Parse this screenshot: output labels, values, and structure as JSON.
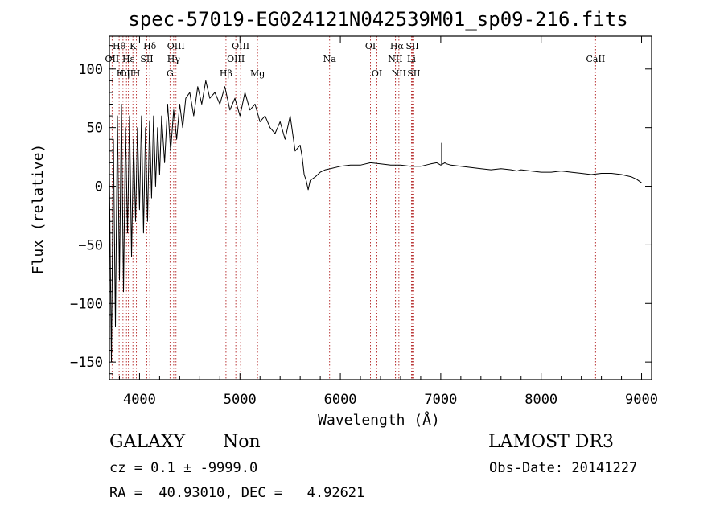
{
  "chart_data": {
    "type": "line",
    "title": "spec-57019-EG024121N042539M01_sp09-216.fits",
    "xlabel": "Wavelength (Å)",
    "ylabel": "Flux (relative)",
    "xlim": [
      3700,
      9100
    ],
    "ylim": [
      -165,
      128
    ],
    "xticks": [
      4000,
      5000,
      6000,
      7000,
      8000,
      9000
    ],
    "yticks": [
      -150,
      -100,
      -50,
      0,
      50,
      100
    ],
    "line_color": "#000000",
    "marker_color": "#b22222",
    "spectrum": {
      "x": [
        3700,
        3720,
        3740,
        3760,
        3780,
        3800,
        3820,
        3840,
        3860,
        3880,
        3900,
        3920,
        3940,
        3960,
        3980,
        4000,
        4020,
        4040,
        4060,
        4080,
        4100,
        4120,
        4140,
        4160,
        4180,
        4200,
        4220,
        4250,
        4280,
        4310,
        4340,
        4370,
        4400,
        4430,
        4460,
        4500,
        4540,
        4580,
        4620,
        4660,
        4700,
        4750,
        4800,
        4850,
        4900,
        4950,
        5000,
        5050,
        5100,
        5150,
        5200,
        5250,
        5300,
        5350,
        5400,
        5450,
        5500,
        5550,
        5600,
        5620,
        5640,
        5660,
        5680,
        5700,
        5750,
        5800,
        5850,
        5900,
        6000,
        6100,
        6200,
        6300,
        6400,
        6500,
        6600,
        6700,
        6800,
        6900,
        6960,
        7000,
        7040,
        7060,
        7100,
        7200,
        7300,
        7400,
        7500,
        7600,
        7700,
        7760,
        7800,
        7900,
        8000,
        8100,
        8200,
        8300,
        8400,
        8500,
        8600,
        8700,
        8800,
        8900,
        8950,
        9000
      ],
      "y": [
        10,
        -150,
        40,
        -120,
        60,
        -80,
        70,
        -90,
        50,
        -40,
        60,
        -60,
        40,
        -30,
        50,
        -20,
        60,
        -40,
        50,
        -30,
        55,
        -10,
        60,
        0,
        50,
        10,
        60,
        20,
        70,
        30,
        65,
        40,
        70,
        50,
        75,
        80,
        60,
        85,
        70,
        90,
        75,
        80,
        70,
        85,
        65,
        75,
        60,
        80,
        65,
        70,
        55,
        60,
        50,
        45,
        55,
        40,
        60,
        30,
        35,
        25,
        10,
        5,
        -3,
        5,
        8,
        12,
        14,
        15,
        17,
        18,
        18,
        20,
        19,
        18,
        18,
        17,
        17,
        19,
        20,
        18,
        20,
        19,
        18,
        17,
        16,
        15,
        14,
        15,
        14,
        13,
        14,
        13,
        12,
        12,
        13,
        12,
        11,
        10,
        11,
        11,
        10,
        8,
        6,
        3
      ],
      "emission": {
        "x": 7010,
        "y": 37
      }
    },
    "line_markers": [
      {
        "label": "OII",
        "x": 3727,
        "row": 2
      },
      {
        "label": "Hθ",
        "x": 3797,
        "row": 1
      },
      {
        "label": "OII",
        "x": 3870,
        "row": 3
      },
      {
        "label": "Hε",
        "x": 3889,
        "row": 2
      },
      {
        "label": "Hη",
        "x": 3835,
        "row": 3
      },
      {
        "label": "K",
        "x": 3934,
        "row": 1
      },
      {
        "label": "H",
        "x": 3969,
        "row": 3
      },
      {
        "label": "SII",
        "x": 4072,
        "row": 2
      },
      {
        "label": "Hδ",
        "x": 4102,
        "row": 1
      },
      {
        "label": "OIII",
        "x": 4363,
        "row": 1
      },
      {
        "label": "Hγ",
        "x": 4340,
        "row": 2
      },
      {
        "label": "G",
        "x": 4304,
        "row": 3
      },
      {
        "label": "Hβ",
        "x": 4861,
        "row": 3
      },
      {
        "label": "OIII",
        "x": 4959,
        "row": 2
      },
      {
        "label": "OIII",
        "x": 5007,
        "row": 1
      },
      {
        "label": "Mg",
        "x": 5175,
        "row": 3
      },
      {
        "label": "Na",
        "x": 5893,
        "row": 2
      },
      {
        "label": "OI",
        "x": 6300,
        "row": 1
      },
      {
        "label": "OI",
        "x": 6364,
        "row": 3
      },
      {
        "label": "NII",
        "x": 6548,
        "row": 2
      },
      {
        "label": "Hα",
        "x": 6563,
        "row": 1
      },
      {
        "label": "NII",
        "x": 6583,
        "row": 3
      },
      {
        "label": "SII",
        "x": 6717,
        "row": 1
      },
      {
        "label": "Li",
        "x": 6708,
        "row": 2
      },
      {
        "label": "SII",
        "x": 6731,
        "row": 3
      },
      {
        "label": "CaII",
        "x": 8542,
        "row": 2
      }
    ]
  },
  "info": {
    "class": "GALAXY",
    "subclass": "Non",
    "survey": "LAMOST DR3",
    "cz": "cz = 0.1 ± -9999.0",
    "obs_date": "Obs-Date: 20141227",
    "coords": "RA =  40.93010, DEC =   4.92621"
  }
}
